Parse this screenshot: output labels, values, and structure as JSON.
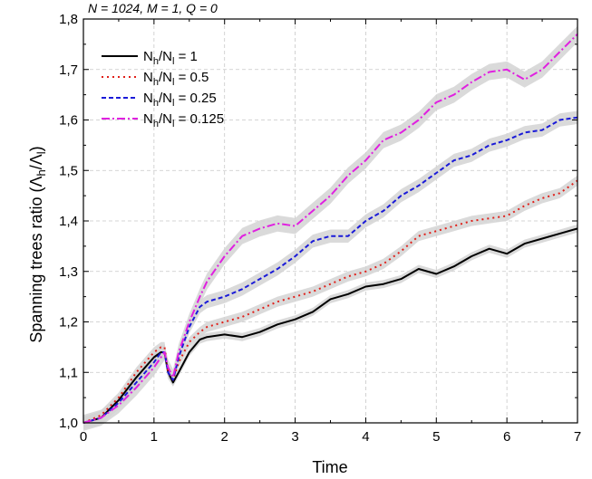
{
  "chart_data": {
    "type": "line",
    "title": "",
    "top_annotation": "N = 1024,  M = 1,  Q = 0",
    "xlabel": "Time",
    "ylabel": {
      "text": "Spanning trees ratio (Λ",
      "sub1": "h",
      "mid": "/Λ",
      "sub2": "l",
      "end": ")"
    },
    "xlim": [
      0,
      7
    ],
    "ylim": [
      1.0,
      1.8
    ],
    "x_ticks": [
      0,
      1,
      2,
      3,
      4,
      5,
      6,
      7
    ],
    "x_tick_labels": [
      "0",
      "1",
      "2",
      "3",
      "4",
      "5",
      "6",
      "7"
    ],
    "y_ticks": [
      1.0,
      1.1,
      1.2,
      1.3,
      1.4,
      1.5,
      1.6,
      1.7,
      1.8
    ],
    "y_tick_labels": [
      "1,0",
      "1,1",
      "1,2",
      "1,3",
      "1,4",
      "1,5",
      "1,6",
      "1,7",
      "1,8"
    ],
    "grid": true,
    "legend_position": "top-left",
    "band_color": "#d3d3d3",
    "series": [
      {
        "label": {
          "a": "N",
          "a_sub": "h",
          "b": "/N",
          "b_sub": "l",
          "c": " = 1"
        },
        "color": "#000000",
        "dash": "",
        "width": 2,
        "x": [
          0,
          0.25,
          0.5,
          0.75,
          1.0,
          1.1,
          1.15,
          1.2,
          1.27,
          1.35,
          1.5,
          1.65,
          1.75,
          2.0,
          2.25,
          2.5,
          2.75,
          3.0,
          3.25,
          3.5,
          3.75,
          4.0,
          4.25,
          4.5,
          4.75,
          5.0,
          5.25,
          5.5,
          5.75,
          6.0,
          6.25,
          6.5,
          6.75,
          7.0
        ],
        "y": [
          1.0,
          1.01,
          1.045,
          1.09,
          1.13,
          1.14,
          1.14,
          1.1,
          1.08,
          1.1,
          1.14,
          1.165,
          1.17,
          1.175,
          1.17,
          1.18,
          1.195,
          1.205,
          1.22,
          1.245,
          1.255,
          1.27,
          1.275,
          1.285,
          1.305,
          1.295,
          1.31,
          1.33,
          1.345,
          1.335,
          1.355,
          1.365,
          1.375,
          1.385
        ],
        "band": 0.008
      },
      {
        "label": {
          "a": "N",
          "a_sub": "h",
          "b": "/N",
          "b_sub": "l",
          "c": " = 0.5"
        },
        "color": "#e0201a",
        "dash": "2,4",
        "width": 2,
        "x": [
          0,
          0.25,
          0.5,
          0.75,
          1.0,
          1.1,
          1.15,
          1.2,
          1.27,
          1.35,
          1.5,
          1.65,
          1.75,
          2.0,
          2.25,
          2.5,
          2.75,
          3.0,
          3.25,
          3.5,
          3.75,
          4.0,
          4.25,
          4.5,
          4.75,
          5.0,
          5.25,
          5.5,
          5.75,
          6.0,
          6.25,
          6.5,
          6.75,
          7.0
        ],
        "y": [
          1.0,
          1.015,
          1.05,
          1.1,
          1.14,
          1.15,
          1.15,
          1.1,
          1.085,
          1.12,
          1.16,
          1.18,
          1.19,
          1.2,
          1.21,
          1.225,
          1.24,
          1.25,
          1.26,
          1.275,
          1.29,
          1.3,
          1.315,
          1.34,
          1.37,
          1.38,
          1.39,
          1.4,
          1.405,
          1.41,
          1.43,
          1.445,
          1.455,
          1.48
        ],
        "band": 0.01
      },
      {
        "label": {
          "a": "N",
          "a_sub": "h",
          "b": "/N",
          "b_sub": "l",
          "c": " = 0.25"
        },
        "color": "#1a1ad8",
        "dash": "5,3",
        "width": 2,
        "x": [
          0,
          0.25,
          0.5,
          0.75,
          1.0,
          1.1,
          1.15,
          1.2,
          1.27,
          1.35,
          1.5,
          1.65,
          1.75,
          2.0,
          2.25,
          2.5,
          2.75,
          3.0,
          3.25,
          3.5,
          3.75,
          4.0,
          4.25,
          4.5,
          4.75,
          5.0,
          5.25,
          5.5,
          5.75,
          6.0,
          6.25,
          6.5,
          6.75,
          7.0
        ],
        "y": [
          1.0,
          1.01,
          1.04,
          1.08,
          1.12,
          1.14,
          1.14,
          1.1,
          1.085,
          1.13,
          1.19,
          1.23,
          1.24,
          1.25,
          1.265,
          1.285,
          1.305,
          1.33,
          1.36,
          1.37,
          1.37,
          1.4,
          1.42,
          1.45,
          1.47,
          1.495,
          1.52,
          1.53,
          1.55,
          1.56,
          1.575,
          1.58,
          1.6,
          1.605
        ],
        "band": 0.013
      },
      {
        "label": {
          "a": "N",
          "a_sub": "h",
          "b": "/N",
          "b_sub": "l",
          "c": " = 0.125"
        },
        "color": "#e020e0",
        "dash": "9,3,2,3",
        "width": 2,
        "x": [
          0,
          0.25,
          0.5,
          0.75,
          1.0,
          1.1,
          1.15,
          1.2,
          1.27,
          1.35,
          1.5,
          1.65,
          1.75,
          2.0,
          2.25,
          2.5,
          2.75,
          3.0,
          3.25,
          3.5,
          3.75,
          4.0,
          4.25,
          4.5,
          4.75,
          5.0,
          5.25,
          5.5,
          5.75,
          6.0,
          6.25,
          6.5,
          6.75,
          7.0
        ],
        "y": [
          1.0,
          1.01,
          1.035,
          1.07,
          1.11,
          1.13,
          1.14,
          1.11,
          1.09,
          1.14,
          1.2,
          1.25,
          1.28,
          1.33,
          1.37,
          1.385,
          1.395,
          1.39,
          1.42,
          1.45,
          1.49,
          1.52,
          1.56,
          1.575,
          1.6,
          1.635,
          1.65,
          1.675,
          1.695,
          1.7,
          1.68,
          1.7,
          1.735,
          1.77
        ],
        "band": 0.016
      }
    ]
  }
}
